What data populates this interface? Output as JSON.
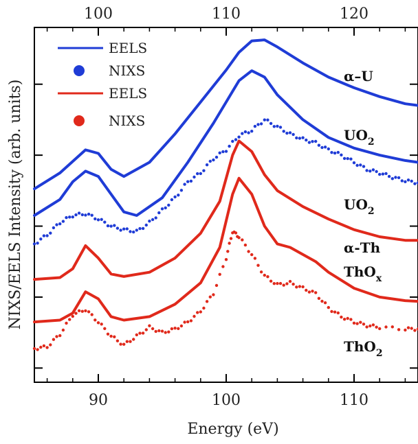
{
  "chart_data": {
    "type": "line",
    "xlabel": "Energy (eV)",
    "ylabel": "NIXS/EELS Intensity (arb. units)",
    "x_bottom": {
      "ticks": [
        "90",
        "100",
        "110"
      ],
      "ticks_values": [
        90,
        100,
        110
      ],
      "range": [
        85,
        115
      ]
    },
    "x_top": {
      "ticks": [
        "100",
        "110",
        "120"
      ],
      "ticks_values": [
        100,
        110,
        120
      ],
      "range": [
        95,
        125
      ]
    },
    "y_range": [
      0,
      10
    ],
    "grid": false,
    "legend": {
      "placement": "top-left",
      "entries": [
        {
          "label": "EELS",
          "marker": "line",
          "color": "#1f3cd6"
        },
        {
          "label": "NIXS",
          "marker": "dot",
          "color": "#1f3cd6"
        },
        {
          "label": "EELS",
          "marker": "line",
          "color": "#e0291b"
        },
        {
          "label": "NIXS",
          "marker": "dot",
          "color": "#e0291b"
        }
      ]
    },
    "curve_labels": [
      {
        "text": "α–U",
        "sub": ""
      },
      {
        "text": "UO",
        "sub": "2"
      },
      {
        "text": "UO",
        "sub": "2"
      },
      {
        "text": "α-Th",
        "sub": ""
      },
      {
        "text": "ThO",
        "sub": "x"
      },
      {
        "text": "ThO",
        "sub": "2"
      }
    ],
    "series": [
      {
        "sample": "α-U",
        "kind": "EELS",
        "axis": "top",
        "color": "#1f3cd6",
        "points": [
          [
            95,
            5.45
          ],
          [
            97,
            5.9
          ],
          [
            99,
            6.55
          ],
          [
            100,
            6.45
          ],
          [
            101,
            6.0
          ],
          [
            102,
            5.8
          ],
          [
            104,
            6.2
          ],
          [
            106,
            7.0
          ],
          [
            108,
            7.9
          ],
          [
            110,
            8.8
          ],
          [
            111,
            9.3
          ],
          [
            112,
            9.62
          ],
          [
            113,
            9.65
          ],
          [
            114,
            9.45
          ],
          [
            116,
            9.0
          ],
          [
            118,
            8.6
          ],
          [
            120,
            8.3
          ],
          [
            122,
            8.05
          ],
          [
            124,
            7.85
          ],
          [
            125,
            7.8
          ]
        ]
      },
      {
        "sample": "UO2",
        "kind": "EELS",
        "axis": "top",
        "color": "#1f3cd6",
        "points": [
          [
            95,
            4.7
          ],
          [
            97,
            5.15
          ],
          [
            98,
            5.65
          ],
          [
            99,
            5.95
          ],
          [
            100,
            5.8
          ],
          [
            101,
            5.3
          ],
          [
            102,
            4.8
          ],
          [
            103,
            4.7
          ],
          [
            105,
            5.2
          ],
          [
            107,
            6.2
          ],
          [
            109,
            7.3
          ],
          [
            110,
            7.9
          ],
          [
            111,
            8.5
          ],
          [
            112,
            8.78
          ],
          [
            113,
            8.6
          ],
          [
            114,
            8.1
          ],
          [
            116,
            7.4
          ],
          [
            118,
            6.9
          ],
          [
            120,
            6.6
          ],
          [
            122,
            6.4
          ],
          [
            124,
            6.25
          ],
          [
            125,
            6.2
          ]
        ]
      },
      {
        "sample": "UO2",
        "kind": "NIXS",
        "axis": "top",
        "color": "#1f3cd6",
        "points": [
          [
            95,
            3.9
          ],
          [
            96,
            4.15
          ],
          [
            97,
            4.5
          ],
          [
            98,
            4.7
          ],
          [
            99,
            4.75
          ],
          [
            100,
            4.6
          ],
          [
            101,
            4.4
          ],
          [
            102,
            4.3
          ],
          [
            103,
            4.25
          ],
          [
            104,
            4.5
          ],
          [
            105,
            4.85
          ],
          [
            106,
            5.2
          ],
          [
            107,
            5.65
          ],
          [
            108,
            5.9
          ],
          [
            109,
            6.3
          ],
          [
            110,
            6.55
          ],
          [
            111,
            6.95
          ],
          [
            112,
            7.1
          ],
          [
            113,
            7.4
          ],
          [
            114,
            7.2
          ],
          [
            115,
            7.0
          ],
          [
            116,
            6.85
          ],
          [
            117,
            6.75
          ],
          [
            118,
            6.55
          ],
          [
            119,
            6.4
          ],
          [
            120,
            6.2
          ],
          [
            121,
            6.0
          ],
          [
            122,
            5.9
          ],
          [
            123,
            5.78
          ],
          [
            124,
            5.68
          ],
          [
            125,
            5.62
          ]
        ]
      },
      {
        "sample": "α-Th",
        "kind": "EELS",
        "axis": "bottom",
        "color": "#e0291b",
        "points": [
          [
            85,
            2.9
          ],
          [
            87,
            2.95
          ],
          [
            88,
            3.2
          ],
          [
            89,
            3.85
          ],
          [
            90,
            3.5
          ],
          [
            91,
            3.05
          ],
          [
            92,
            2.98
          ],
          [
            94,
            3.1
          ],
          [
            96,
            3.5
          ],
          [
            98,
            4.2
          ],
          [
            99.5,
            5.1
          ],
          [
            100.5,
            6.4
          ],
          [
            101,
            6.8
          ],
          [
            102,
            6.5
          ],
          [
            103,
            5.85
          ],
          [
            104,
            5.4
          ],
          [
            106,
            4.95
          ],
          [
            108,
            4.6
          ],
          [
            110,
            4.3
          ],
          [
            112,
            4.1
          ],
          [
            114,
            4.0
          ],
          [
            115,
            4.0
          ]
        ]
      },
      {
        "sample": "ThOx",
        "kind": "EELS",
        "axis": "bottom",
        "color": "#e0291b",
        "points": [
          [
            85,
            1.7
          ],
          [
            87,
            1.75
          ],
          [
            88,
            1.95
          ],
          [
            89,
            2.55
          ],
          [
            90,
            2.35
          ],
          [
            91,
            1.85
          ],
          [
            92,
            1.75
          ],
          [
            94,
            1.85
          ],
          [
            96,
            2.2
          ],
          [
            98,
            2.8
          ],
          [
            99.5,
            3.8
          ],
          [
            100.5,
            5.3
          ],
          [
            101,
            5.75
          ],
          [
            102,
            5.3
          ],
          [
            103,
            4.4
          ],
          [
            104,
            3.9
          ],
          [
            105,
            3.8
          ],
          [
            106,
            3.6
          ],
          [
            107,
            3.4
          ],
          [
            108,
            3.1
          ],
          [
            110,
            2.65
          ],
          [
            112,
            2.4
          ],
          [
            114,
            2.3
          ],
          [
            115,
            2.28
          ]
        ]
      },
      {
        "sample": "ThO2",
        "kind": "NIXS",
        "axis": "bottom",
        "color": "#e0291b",
        "points": [
          [
            85,
            0.95
          ],
          [
            86,
            1.0
          ],
          [
            87,
            1.35
          ],
          [
            88,
            1.9
          ],
          [
            89,
            2.05
          ],
          [
            90,
            1.7
          ],
          [
            91,
            1.3
          ],
          [
            92,
            1.05
          ],
          [
            93,
            1.3
          ],
          [
            94,
            1.55
          ],
          [
            95,
            1.4
          ],
          [
            96,
            1.5
          ],
          [
            97,
            1.7
          ],
          [
            98,
            2.0
          ],
          [
            99,
            2.5
          ],
          [
            100,
            3.5
          ],
          [
            100.5,
            4.25
          ],
          [
            101,
            4.1
          ],
          [
            102,
            3.6
          ],
          [
            103,
            3.0
          ],
          [
            104,
            2.75
          ],
          [
            105,
            2.8
          ],
          [
            106,
            2.65
          ],
          [
            107,
            2.5
          ],
          [
            108,
            2.1
          ],
          [
            109,
            1.85
          ],
          [
            110,
            1.7
          ],
          [
            111,
            1.6
          ],
          [
            112,
            1.55
          ],
          [
            114,
            1.5
          ],
          [
            115,
            1.5
          ]
        ]
      }
    ]
  }
}
